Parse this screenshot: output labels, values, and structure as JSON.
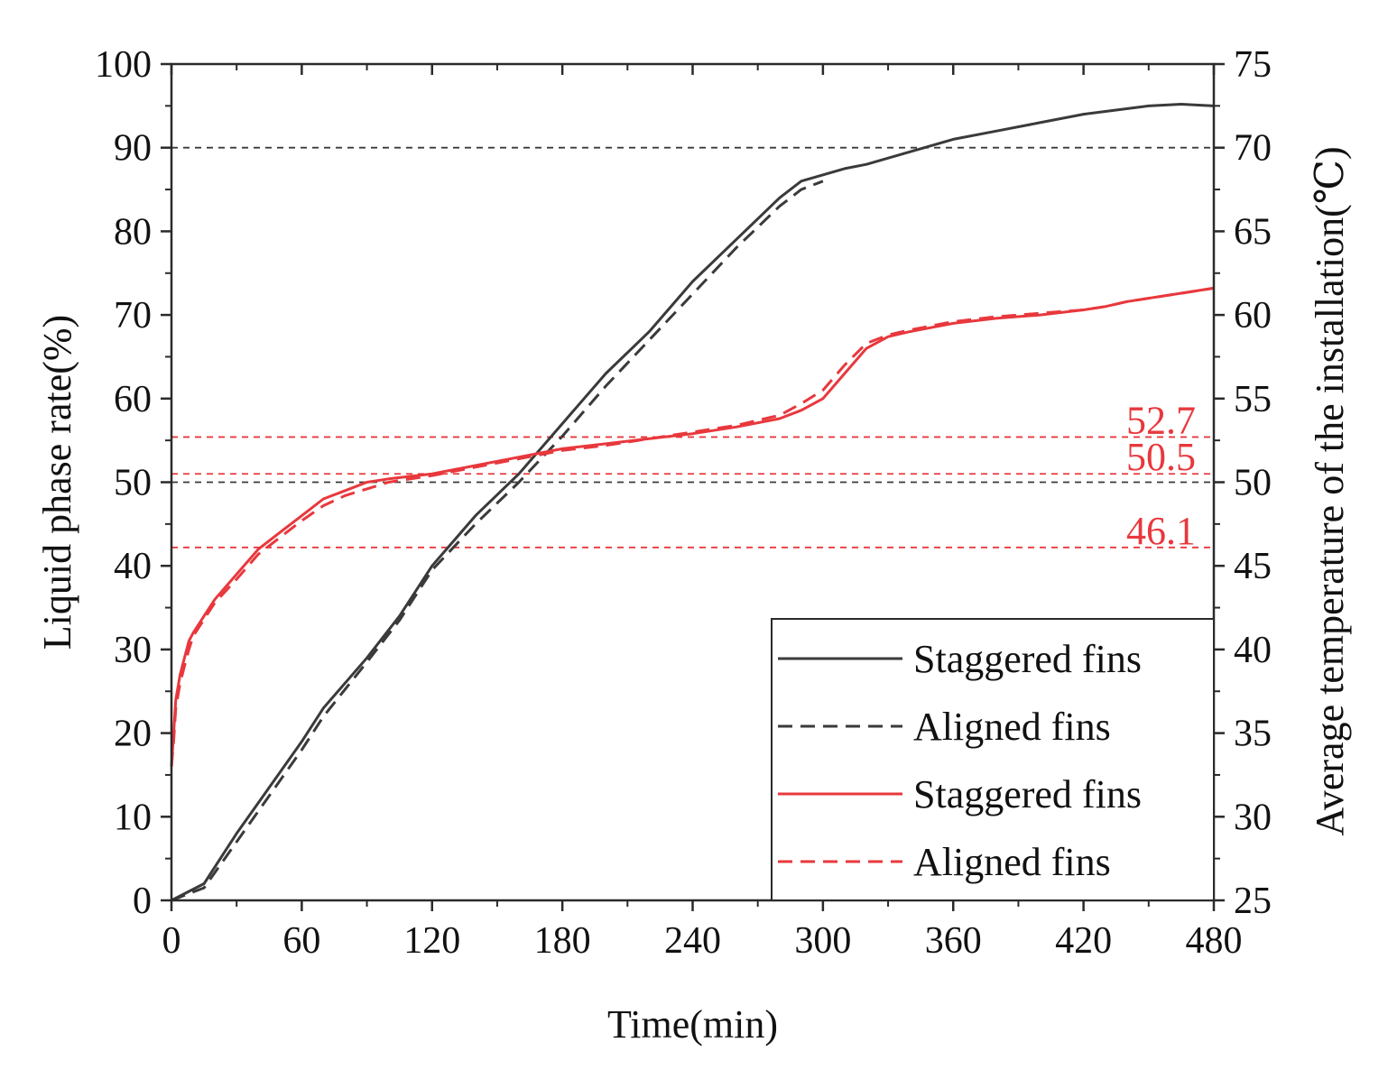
{
  "chart_data": {
    "type": "line",
    "xlabel": "Time(min)",
    "ylabel": "Liquid phase rate(%)",
    "y2label": "Average temperature of the installation(℃)",
    "xlim": [
      0,
      480
    ],
    "ylim": [
      0,
      100
    ],
    "y2lim": [
      25,
      75
    ],
    "xticks": [
      "0",
      "60",
      "120",
      "180",
      "240",
      "300",
      "360",
      "420",
      "480"
    ],
    "yticks": [
      "0",
      "10",
      "20",
      "30",
      "40",
      "50",
      "60",
      "70",
      "80",
      "90",
      "100"
    ],
    "y2ticks": [
      "25",
      "30",
      "35",
      "40",
      "45",
      "50",
      "55",
      "60",
      "65",
      "70",
      "75"
    ],
    "grid": false,
    "legend_position": "bottom-right",
    "colors": {
      "black": "#3a3a3a",
      "red": "#e8383d"
    },
    "series": [
      {
        "name": "Staggered fins",
        "axis": "left",
        "color": "#3a3a3a",
        "dash": "solid",
        "x": [
          0,
          15,
          30,
          45,
          60,
          70,
          90,
          105,
          120,
          140,
          160,
          180,
          200,
          220,
          240,
          260,
          280,
          290,
          310,
          320,
          340,
          360,
          380,
          400,
          420,
          435,
          450,
          465,
          480
        ],
        "y": [
          0,
          2,
          8,
          13.5,
          19,
          23,
          29,
          34,
          40,
          46,
          51,
          57,
          63,
          68,
          74,
          79,
          84,
          86,
          87.5,
          88,
          89.5,
          91,
          92,
          93,
          94,
          94.5,
          95,
          95.2,
          95
        ]
      },
      {
        "name": "Aligned fins",
        "axis": "left",
        "color": "#3a3a3a",
        "dash": "dashed",
        "x": [
          0,
          15,
          30,
          45,
          60,
          70,
          90,
          105,
          120,
          140,
          160,
          180,
          200,
          220,
          240,
          260,
          280,
          290,
          300
        ],
        "y": [
          0,
          1.5,
          7,
          12.5,
          18,
          22,
          28.5,
          33.5,
          39.5,
          45,
          50,
          55.5,
          61.5,
          67,
          72.5,
          78,
          83,
          85,
          86
        ]
      },
      {
        "name": "Staggered fins",
        "axis": "right",
        "color": "#e8383d",
        "dash": "solid",
        "x": [
          0,
          1,
          2,
          4,
          6,
          8,
          10,
          15,
          20,
          30,
          40,
          50,
          60,
          70,
          80,
          90,
          100,
          120,
          140,
          160,
          180,
          200,
          220,
          240,
          260,
          280,
          290,
          300,
          310,
          320,
          330,
          340,
          360,
          380,
          400,
          420,
          430,
          440,
          460,
          480
        ],
        "y": [
          33,
          35,
          37,
          38.5,
          39.5,
          40.5,
          41,
          42,
          43,
          44.5,
          46,
          47,
          48,
          49,
          49.5,
          50,
          50.2,
          50.5,
          51,
          51.5,
          52,
          52.3,
          52.6,
          52.9,
          53.3,
          53.8,
          54.3,
          55,
          56.5,
          58,
          58.7,
          59,
          59.5,
          59.8,
          60,
          60.3,
          60.5,
          60.8,
          61.2,
          61.6
        ]
      },
      {
        "name": "Aligned fins",
        "axis": "right",
        "color": "#e8383d",
        "dash": "dashed",
        "x": [
          0,
          1,
          2,
          4,
          6,
          8,
          10,
          15,
          20,
          30,
          40,
          50,
          60,
          70,
          80,
          90,
          100,
          120,
          140,
          160,
          180,
          200,
          220,
          240,
          260,
          280,
          290,
          300,
          310,
          320,
          330,
          340,
          360,
          380,
          400,
          420,
          430,
          440,
          460,
          480
        ],
        "y": [
          33,
          34.5,
          36.5,
          38,
          39,
          40,
          40.8,
          41.8,
          42.8,
          44.2,
          45.7,
          46.7,
          47.7,
          48.6,
          49.2,
          49.6,
          50,
          50.4,
          50.9,
          51.4,
          51.9,
          52.2,
          52.6,
          53,
          53.4,
          54,
          54.7,
          55.5,
          57,
          58.3,
          58.8,
          59.1,
          59.6,
          59.9,
          60.1,
          60.3,
          60.5,
          60.8,
          61.2,
          61.6
        ]
      }
    ],
    "reference_lines": [
      {
        "axis": "left",
        "value": 90,
        "color": "#3a3a3a"
      },
      {
        "axis": "left",
        "value": 50,
        "color": "#3a3a3a"
      },
      {
        "axis": "right",
        "value": 52.7,
        "color": "#e8383d",
        "label": "52.7"
      },
      {
        "axis": "right",
        "value": 50.5,
        "color": "#e8383d",
        "label": "50.5"
      },
      {
        "axis": "right",
        "value": 46.1,
        "color": "#e8383d",
        "label": "46.1"
      }
    ]
  }
}
